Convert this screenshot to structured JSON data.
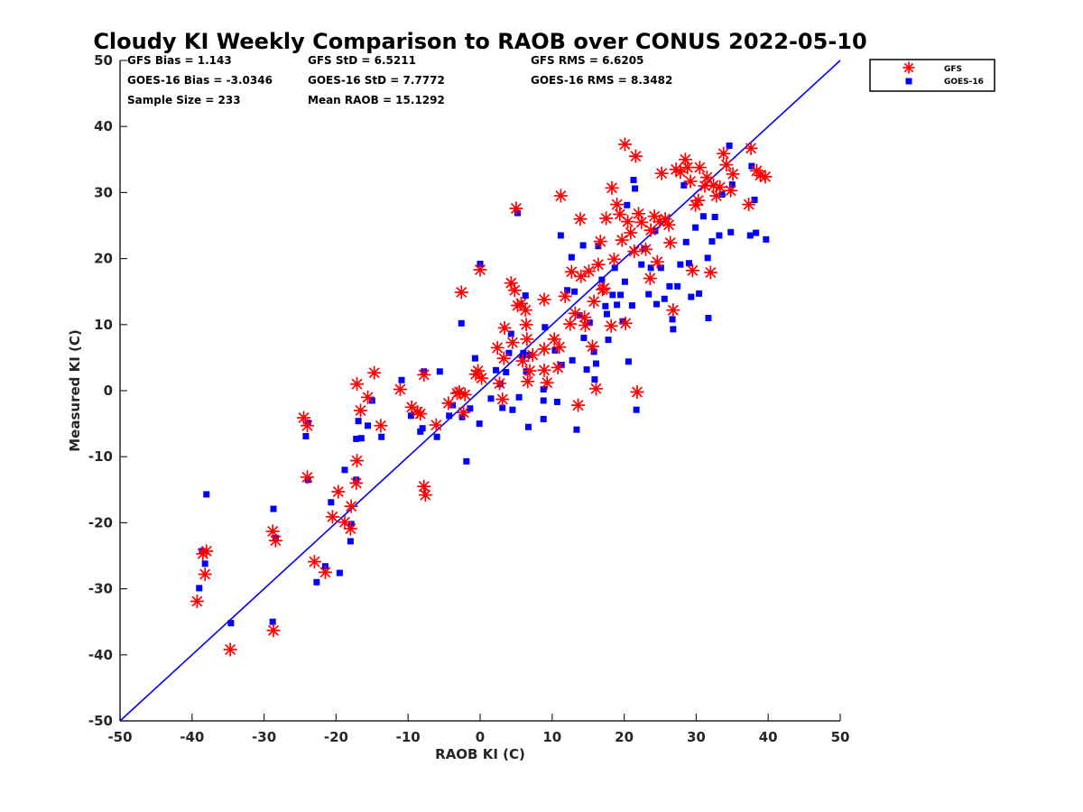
{
  "chart_data": {
    "type": "scatter",
    "title": "Cloudy KI Weekly Comparison to RAOB over CONUS 2022-05-10",
    "xlabel": "RAOB KI (C)",
    "ylabel": "Measured KI (C)",
    "xlim": [
      -50,
      50
    ],
    "ylim": [
      -50,
      50
    ],
    "xticks": [
      "-50",
      "-40",
      "-30",
      "-20",
      "-10",
      "0",
      "10",
      "20",
      "30",
      "40",
      "50"
    ],
    "yticks": [
      "-50",
      "-40",
      "-30",
      "-20",
      "-10",
      "0",
      "10",
      "20",
      "30",
      "40",
      "50"
    ],
    "grid": false,
    "legend_position": "outside-top-right",
    "stats": [
      "GFS Bias = 1.143",
      "GFS StD = 6.5211",
      "GFS RMS = 6.6205",
      "GOES-16 Bias = -3.0346",
      "GOES-16 StD = 7.7772",
      "GOES-16 RMS = 8.3482",
      "Sample Size = 233",
      "Mean RAOB = 15.1292"
    ],
    "reference_line": {
      "from": [
        -50,
        -50
      ],
      "to": [
        50,
        50
      ],
      "color": "#0000ff"
    },
    "series": [
      {
        "name": "GFS",
        "marker": "asterisk",
        "color": "#ff0000",
        "points": [
          [
            -39.3,
            -31.9
          ],
          [
            -38.5,
            -24.7
          ],
          [
            -38.2,
            -27.8
          ],
          [
            -38,
            -24.3
          ],
          [
            -34.7,
            -39.2
          ],
          [
            -28.8,
            -21.3
          ],
          [
            -28.7,
            -36.3
          ],
          [
            -28.4,
            -22.7
          ],
          [
            -24.5,
            -4.1
          ],
          [
            -24,
            -5.3
          ],
          [
            -24,
            -13.1
          ],
          [
            -23,
            -25.9
          ],
          [
            -21.5,
            -27.5
          ],
          [
            -20.5,
            -19.1
          ],
          [
            -19.7,
            -15.3
          ],
          [
            -18.8,
            -19.9
          ],
          [
            -18,
            -20.9
          ],
          [
            -17.9,
            -17.5
          ],
          [
            -17.2,
            -14
          ],
          [
            -17.1,
            1
          ],
          [
            -17.1,
            -10.6
          ],
          [
            -16.6,
            -3
          ],
          [
            -15.6,
            -1
          ],
          [
            -14.7,
            2.7
          ],
          [
            -13.8,
            -5.3
          ],
          [
            -11.1,
            0.2
          ],
          [
            -9.5,
            -2.5
          ],
          [
            -8.7,
            -3.2
          ],
          [
            -8.3,
            -3.5
          ],
          [
            -7.8,
            2.4
          ],
          [
            -7.8,
            -14.5
          ],
          [
            -7.6,
            -15.8
          ],
          [
            -6.1,
            -5.2
          ],
          [
            -4.4,
            -1.9
          ],
          [
            -3.2,
            -0.4
          ],
          [
            -2.9,
            -0.2
          ],
          [
            -2.6,
            14.9
          ],
          [
            -2.1,
            -0.6
          ],
          [
            -2.3,
            -3.3
          ],
          [
            -0.6,
            2.5
          ],
          [
            -0.3,
            3
          ],
          [
            0.2,
            1.9
          ],
          [
            0,
            18.3
          ],
          [
            2.4,
            6.5
          ],
          [
            2.7,
            1.1
          ],
          [
            3.3,
            4.9
          ],
          [
            3.4,
            9.5
          ],
          [
            3.1,
            -1.3
          ],
          [
            4.3,
            16.3
          ],
          [
            4.5,
            7.3
          ],
          [
            4.8,
            15.2
          ],
          [
            5,
            27.6
          ],
          [
            5.2,
            12.9
          ],
          [
            5.7,
            13.2
          ],
          [
            5.9,
            4.5
          ],
          [
            6.3,
            12.2
          ],
          [
            6.4,
            10
          ],
          [
            6.5,
            7.8
          ],
          [
            6.9,
            3
          ],
          [
            7.3,
            5.4
          ],
          [
            6.6,
            1.4
          ],
          [
            8.9,
            13.8
          ],
          [
            8.9,
            6.3
          ],
          [
            8.9,
            3.1
          ],
          [
            9.3,
            1.2
          ],
          [
            10.3,
            7.8
          ],
          [
            10.8,
            3.5
          ],
          [
            11,
            6.6
          ],
          [
            11.2,
            29.5
          ],
          [
            11.8,
            14.3
          ],
          [
            12.5,
            10.1
          ],
          [
            12.7,
            18
          ],
          [
            13.2,
            11.7
          ],
          [
            13.6,
            -2.2
          ],
          [
            13.9,
            26
          ],
          [
            14,
            17.3
          ],
          [
            14.5,
            11.1
          ],
          [
            14.6,
            9.9
          ],
          [
            15.1,
            18.1
          ],
          [
            15.6,
            6.7
          ],
          [
            15.8,
            13.5
          ],
          [
            16.1,
            0.3
          ],
          [
            16.4,
            19.1
          ],
          [
            16.7,
            22.6
          ],
          [
            17,
            15.3
          ],
          [
            17.2,
            15.5
          ],
          [
            17.5,
            26.1
          ],
          [
            18.2,
            9.8
          ],
          [
            18.3,
            30.7
          ],
          [
            18.6,
            19.9
          ],
          [
            19,
            28.2
          ],
          [
            19.4,
            26.7
          ],
          [
            19.7,
            22.8
          ],
          [
            20.1,
            37.3
          ],
          [
            20.5,
            25.6
          ],
          [
            20.2,
            10.2
          ],
          [
            20.9,
            23.9
          ],
          [
            21.4,
            21.1
          ],
          [
            21.6,
            35.5
          ],
          [
            22,
            26.8
          ],
          [
            21.8,
            -0.2
          ],
          [
            22.4,
            25.5
          ],
          [
            23,
            21.4
          ],
          [
            23.6,
            17
          ],
          [
            23.7,
            24.3
          ],
          [
            24.2,
            26.4
          ],
          [
            24.6,
            19.5
          ],
          [
            24.9,
            25.6
          ],
          [
            25.2,
            32.9
          ],
          [
            25.7,
            26
          ],
          [
            26.2,
            25.1
          ],
          [
            26.4,
            22.4
          ],
          [
            26.8,
            12.2
          ],
          [
            27.2,
            33.5
          ],
          [
            27.8,
            33.1
          ],
          [
            28.5,
            35
          ],
          [
            28.8,
            33.8
          ],
          [
            29.2,
            31.7
          ],
          [
            29.5,
            18.2
          ],
          [
            29.9,
            28.1
          ],
          [
            30.3,
            28.8
          ],
          [
            30.5,
            33.8
          ],
          [
            31.2,
            31
          ],
          [
            31.5,
            32.3
          ],
          [
            32,
            17.9
          ],
          [
            32.4,
            31.1
          ],
          [
            32.8,
            29.5
          ],
          [
            33.3,
            30.8
          ],
          [
            33.8,
            35.9
          ],
          [
            34.2,
            34.2
          ],
          [
            34.8,
            30.3
          ],
          [
            35.1,
            32.8
          ],
          [
            37.3,
            28.2
          ],
          [
            37.6,
            36.7
          ],
          [
            38.4,
            33.3
          ],
          [
            38.9,
            32.6
          ],
          [
            39.6,
            32.4
          ]
        ]
      },
      {
        "name": "GOES-16",
        "marker": "square",
        "color": "#0000ff",
        "points": [
          [
            -39,
            -29.9
          ],
          [
            -38.6,
            -24.3
          ],
          [
            -38.2,
            -26.2
          ],
          [
            -38,
            -15.7
          ],
          [
            -34.6,
            -35.2
          ],
          [
            -28.8,
            -35
          ],
          [
            -28.7,
            -17.9
          ],
          [
            -28.4,
            -22.3
          ],
          [
            -24.2,
            -6.9
          ],
          [
            -23.9,
            -4.9
          ],
          [
            -23.9,
            -13.5
          ],
          [
            -22.7,
            -29
          ],
          [
            -21.5,
            -26.6
          ],
          [
            -20.7,
            -16.9
          ],
          [
            -19.5,
            -27.6
          ],
          [
            -18.8,
            -12
          ],
          [
            -18,
            -22.8
          ],
          [
            -17.9,
            -20.2
          ],
          [
            -17.2,
            -13.5
          ],
          [
            -17.2,
            -7.3
          ],
          [
            -16.5,
            -7.2
          ],
          [
            -16.9,
            -4.6
          ],
          [
            -15.6,
            -5.3
          ],
          [
            -15,
            -1.5
          ],
          [
            -13.7,
            -7
          ],
          [
            -10.9,
            1.6
          ],
          [
            -9.6,
            -3.8
          ],
          [
            -8.3,
            -6.2
          ],
          [
            -8,
            -5.7
          ],
          [
            -7.8,
            2.9
          ],
          [
            -6,
            -7
          ],
          [
            -5.6,
            2.9
          ],
          [
            -4.3,
            -3.8
          ],
          [
            -3.8,
            -2.2
          ],
          [
            -2.6,
            10.2
          ],
          [
            -2.5,
            -4
          ],
          [
            -1.9,
            -10.7
          ],
          [
            -1.4,
            -2.7
          ],
          [
            -0.7,
            4.9
          ],
          [
            0,
            19.2
          ],
          [
            -0.1,
            -5
          ],
          [
            1.5,
            -1.2
          ],
          [
            2.2,
            3.1
          ],
          [
            2.8,
            1
          ],
          [
            3.1,
            -2.6
          ],
          [
            3.6,
            2.8
          ],
          [
            4,
            5.7
          ],
          [
            4.3,
            8.6
          ],
          [
            4.5,
            -2.9
          ],
          [
            5.2,
            26.9
          ],
          [
            5.4,
            -1
          ],
          [
            5.9,
            5.2
          ],
          [
            6,
            5.7
          ],
          [
            6.3,
            14.4
          ],
          [
            6.4,
            2.9
          ],
          [
            6.7,
            -5.5
          ],
          [
            6.9,
            5.4
          ],
          [
            8.8,
            -4.3
          ],
          [
            8.8,
            0.2
          ],
          [
            8.8,
            -1.5
          ],
          [
            9,
            9.6
          ],
          [
            10.4,
            6.1
          ],
          [
            10.7,
            -1.7
          ],
          [
            11.2,
            23.5
          ],
          [
            11.3,
            3.9
          ],
          [
            12.1,
            15.2
          ],
          [
            12.7,
            20.2
          ],
          [
            12.8,
            4.6
          ],
          [
            13.1,
            15
          ],
          [
            13.4,
            -5.9
          ],
          [
            13.8,
            11.4
          ],
          [
            14.3,
            22
          ],
          [
            14.4,
            8
          ],
          [
            14.8,
            3.2
          ],
          [
            15.2,
            10.3
          ],
          [
            15.8,
            5.9
          ],
          [
            15.9,
            1.7
          ],
          [
            16.1,
            4.1
          ],
          [
            16.4,
            21.9
          ],
          [
            16.9,
            16.8
          ],
          [
            17.4,
            12.8
          ],
          [
            17.6,
            11.6
          ],
          [
            17.8,
            7.7
          ],
          [
            18.4,
            14.5
          ],
          [
            18.7,
            18.6
          ],
          [
            19,
            13
          ],
          [
            19.5,
            14.5
          ],
          [
            19.8,
            10.5
          ],
          [
            20.1,
            16.5
          ],
          [
            20.4,
            28.1
          ],
          [
            20.6,
            4.4
          ],
          [
            21.1,
            12.9
          ],
          [
            21.3,
            31.9
          ],
          [
            21.5,
            30.6
          ],
          [
            21.7,
            -2.9
          ],
          [
            22.4,
            19.1
          ],
          [
            22.8,
            21.5
          ],
          [
            23.4,
            14.6
          ],
          [
            23.7,
            18.6
          ],
          [
            24.3,
            24.2
          ],
          [
            24.5,
            13.1
          ],
          [
            25.1,
            18.6
          ],
          [
            25.6,
            13.9
          ],
          [
            26.3,
            15.8
          ],
          [
            26.7,
            10.8
          ],
          [
            26.8,
            9.3
          ],
          [
            27.4,
            15.8
          ],
          [
            27.8,
            19.1
          ],
          [
            28.3,
            31.1
          ],
          [
            28.6,
            22.5
          ],
          [
            29,
            19.3
          ],
          [
            29.3,
            14.2
          ],
          [
            29.9,
            24.7
          ],
          [
            30.4,
            14.7
          ],
          [
            31,
            26.4
          ],
          [
            31.6,
            20.1
          ],
          [
            31.7,
            11
          ],
          [
            32.2,
            22.6
          ],
          [
            32.6,
            26.3
          ],
          [
            33.2,
            23.5
          ],
          [
            33.6,
            29.7
          ],
          [
            34.6,
            37.1
          ],
          [
            34.8,
            24
          ],
          [
            35,
            31.2
          ],
          [
            37.5,
            23.5
          ],
          [
            37.7,
            34
          ],
          [
            38.3,
            23.9
          ],
          [
            38.1,
            28.9
          ],
          [
            39.7,
            22.9
          ]
        ]
      }
    ]
  }
}
